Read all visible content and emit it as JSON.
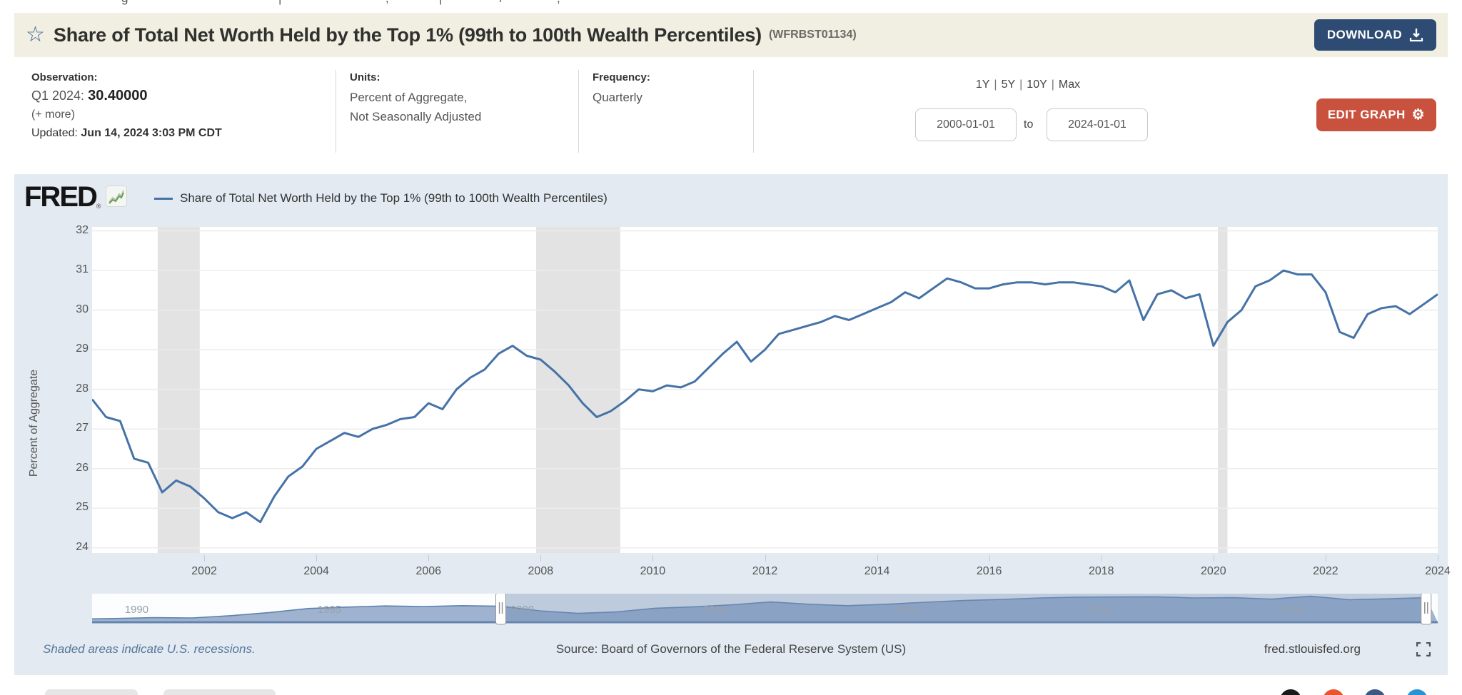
{
  "page": {
    "top_fragments": [
      "g",
      "|",
      ",",
      "|",
      "/",
      ","
    ]
  },
  "header": {
    "title": "Share of Total Net Worth Held by the Top 1% (99th to 100th Wealth Percentiles)",
    "series_id": "(WFRBST01134)",
    "download_label": "DOWNLOAD"
  },
  "meta": {
    "observation": {
      "label": "Observation:",
      "period": "Q1 2024:",
      "value": "30.40000",
      "more": "(+ more)",
      "updated_label": "Updated:",
      "updated_value": "Jun 14, 2024 3:03 PM CDT"
    },
    "units": {
      "label": "Units:",
      "line1": "Percent of Aggregate,",
      "line2": "Not Seasonally Adjusted"
    },
    "frequency": {
      "label": "Frequency:",
      "value": "Quarterly"
    }
  },
  "range": {
    "presets": [
      "1Y",
      "5Y",
      "10Y",
      "Max"
    ],
    "from": "2000-01-01",
    "to_word": "to",
    "to": "2024-01-01",
    "edit_label": "EDIT GRAPH"
  },
  "chart": {
    "brand": "FRED",
    "legend_label": "Share of Total Net Worth Held by the Top 1% (99th to 100th Wealth Percentiles)"
  },
  "footer": {
    "note": "Shaded areas indicate U.S. recessions.",
    "source": "Source: Board of Governors of the Federal Reserve System (US)",
    "site": "fred.stlouisfed.org"
  },
  "share_icons": [
    {
      "name": "share-x-icon",
      "color": "#1a1a1a"
    },
    {
      "name": "share-reddit-icon",
      "color": "#e8552e"
    },
    {
      "name": "share-facebook-icon",
      "color": "#3b5a82"
    },
    {
      "name": "share-twitter-icon",
      "color": "#2a93d5"
    }
  ],
  "colors": {
    "accent_navy": "#2d4b73",
    "accent_red": "#c9523e",
    "line": "#4572a7",
    "chart_bg": "#e3eaf1",
    "titlebar_bg": "#f0efe2",
    "recession": "#e3e3e3",
    "grid": "#ececec",
    "mini_fill": "#9fb3d0",
    "mini_line": "#5f82ae",
    "mini_overlay": "rgba(113,141,182,0.45)"
  },
  "chart_data": {
    "type": "line",
    "title": "Share of Total Net Worth Held by the Top 1% (99th to 100th Wealth Percentiles)",
    "ylabel": "Percent of Aggregate",
    "xlabel": "",
    "grid": true,
    "legend_position": "top-left",
    "x_domain": [
      2000.0,
      2024.0
    ],
    "y_domain": [
      23.87,
      32.1
    ],
    "ylim": [
      24,
      32
    ],
    "x_ticks": [
      2002,
      2004,
      2006,
      2008,
      2010,
      2012,
      2014,
      2016,
      2018,
      2020,
      2022,
      2024
    ],
    "y_ticks": [
      24,
      25,
      26,
      27,
      28,
      29,
      30,
      31,
      32
    ],
    "x_start": 2000.0,
    "x_step": 0.25,
    "frequency": "Quarterly",
    "values": [
      27.75,
      27.3,
      27.2,
      26.25,
      26.15,
      25.4,
      25.7,
      25.55,
      25.25,
      24.9,
      24.75,
      24.9,
      24.65,
      25.3,
      25.8,
      26.05,
      26.5,
      26.7,
      26.9,
      26.8,
      27.0,
      27.1,
      27.25,
      27.3,
      27.65,
      27.5,
      28.0,
      28.3,
      28.5,
      28.9,
      29.1,
      28.85,
      28.75,
      28.45,
      28.1,
      27.65,
      27.3,
      27.45,
      27.7,
      28.0,
      27.95,
      28.1,
      28.05,
      28.2,
      28.55,
      28.9,
      29.2,
      28.7,
      29.0,
      29.4,
      29.5,
      29.6,
      29.7,
      29.85,
      29.75,
      29.9,
      30.05,
      30.2,
      30.45,
      30.3,
      30.55,
      30.8,
      30.7,
      30.55,
      30.55,
      30.65,
      30.7,
      30.7,
      30.65,
      30.7,
      30.7,
      30.65,
      30.6,
      30.45,
      30.75,
      29.75,
      30.4,
      30.5,
      30.3,
      30.4,
      29.1,
      29.7,
      30.0,
      30.6,
      30.75,
      31.0,
      30.9,
      30.9,
      30.45,
      29.45,
      29.3,
      29.9,
      30.05,
      30.1,
      29.9,
      30.15,
      30.4
    ],
    "recessions": [
      [
        2001.17,
        2001.92
      ],
      [
        2007.92,
        2009.42
      ],
      [
        2020.08,
        2020.25
      ]
    ],
    "preview": {
      "x_domain": [
        1989.4,
        2024.3
      ],
      "y_domain": [
        21.8,
        31.8
      ],
      "x_start": 1989,
      "x_step": 1,
      "values": [
        22.9,
        23.1,
        23.4,
        23.3,
        24.1,
        25.2,
        26.6,
        27.1,
        27.5,
        27.3,
        27.6,
        27.4,
        25.8,
        24.9,
        25.4,
        26.7,
        27.2,
        27.9,
        28.9,
        28.1,
        27.6,
        28.1,
        28.8,
        29.4,
        29.8,
        30.3,
        30.6,
        30.65,
        30.7,
        30.3,
        30.4,
        29.9,
        30.9,
        29.7,
        30.0,
        30.4
      ],
      "labels": [
        1990,
        1995,
        2000,
        2005,
        2010,
        2015,
        2020
      ],
      "selected": [
        2000.0,
        2024.0
      ]
    }
  }
}
